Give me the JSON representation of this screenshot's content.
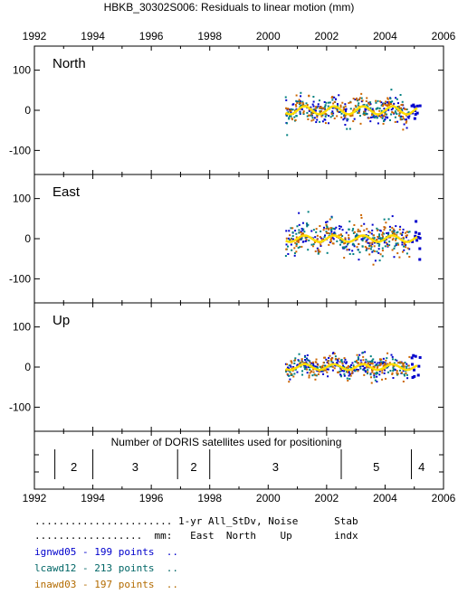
{
  "chart_data": {
    "type": "scatter",
    "title": "HBKB_30302S006: Residuals to linear motion (mm)",
    "x_ticks": [
      1992,
      1994,
      1996,
      1998,
      2000,
      2002,
      2004,
      2006
    ],
    "xlim": [
      1992,
      2006
    ],
    "ylim": [
      -160,
      160
    ],
    "y_ticks": [
      -100,
      0,
      100
    ],
    "data_start": 2000.6,
    "data_end": 2005.2,
    "panels": [
      {
        "label": "North",
        "scatter_sd": 15,
        "annual_amplitude": 10
      },
      {
        "label": "East",
        "scatter_sd": 20,
        "annual_amplitude": 8
      },
      {
        "label": "Up",
        "scatter_sd": 13,
        "annual_amplitude": 7
      }
    ],
    "satellites": {
      "title": "Number of DORIS satellites used for positioning",
      "dividers": [
        1992.7,
        1994.0,
        1996.9,
        1998.0,
        2002.5,
        2004.9
      ],
      "segments": [
        {
          "label": "2",
          "x": 1993.35
        },
        {
          "label": "3",
          "x": 1995.45
        },
        {
          "label": "2",
          "x": 1997.45
        },
        {
          "label": "3",
          "x": 2000.25
        },
        {
          "label": "5",
          "x": 2003.7
        },
        {
          "label": "4",
          "x": 2005.25
        }
      ]
    },
    "series": [
      {
        "name": "ignwd05",
        "points": 199,
        "color": "#0000cc"
      },
      {
        "name": "lcawd12",
        "points": 213,
        "color": "#008080"
      },
      {
        "name": "inawd03",
        "points": 197,
        "color": "#cc6600"
      }
    ],
    "fit_color": "#ffdd00"
  },
  "legend": {
    "header1": "....................... 1-yr All_StDv, Noise      Stab",
    "header2": "..................  mm:   East  North    Up       indx",
    "rows": [
      {
        "text": "ignwd05 - 199 points  ..",
        "color": "#0000cc"
      },
      {
        "text": "lcawd12 - 213 points  ..",
        "color": "#006666"
      },
      {
        "text": "inawd03 - 197 points  ..",
        "color": "#b36b00"
      }
    ]
  }
}
